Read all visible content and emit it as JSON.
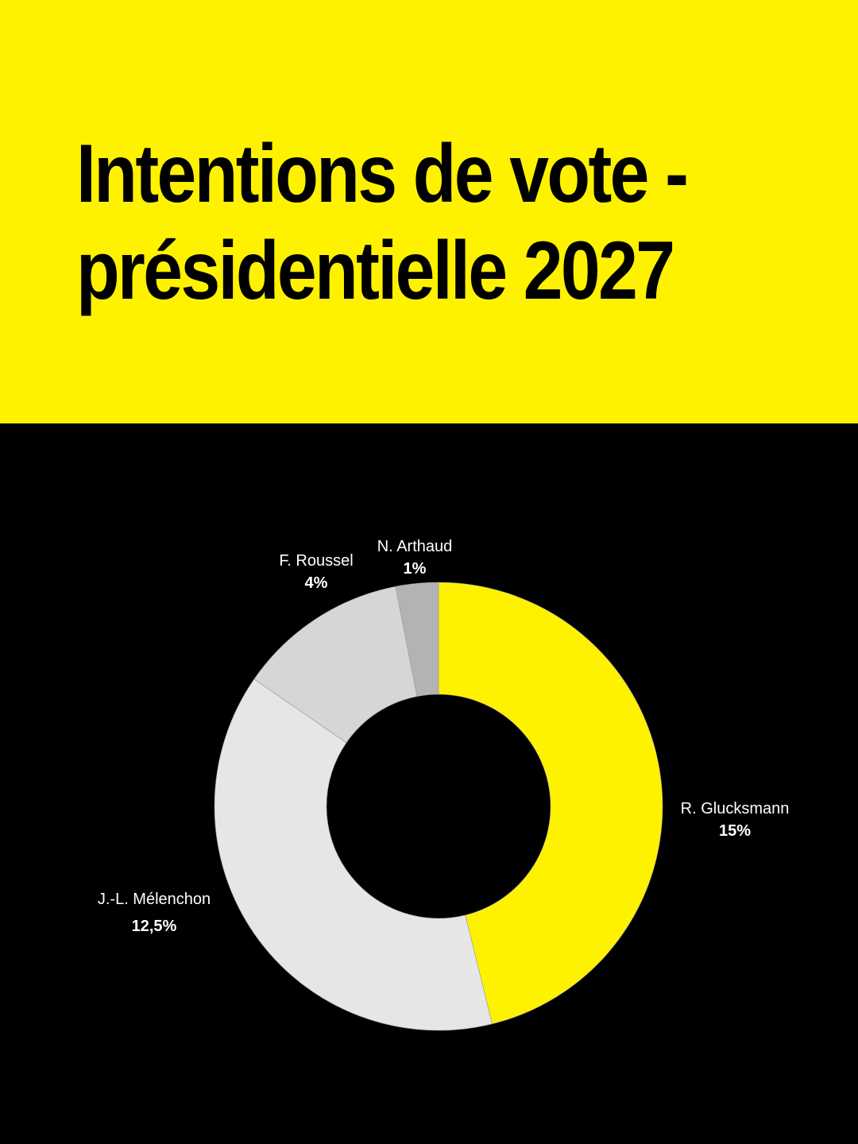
{
  "header": {
    "title_line1": "Intentions de vote -",
    "title_line2": "présidentielle 2027",
    "background": "#FFF200"
  },
  "chart_data": {
    "type": "pie",
    "donut": true,
    "title": "Intentions de vote - présidentielle 2027",
    "slices": [
      {
        "name": "R. Glucksmann",
        "value": 15,
        "label": "15%",
        "color": "#FFF200"
      },
      {
        "name": "J.-L. Mélenchon",
        "value": 12.5,
        "label": "12,5%",
        "color": "#E6E6E6"
      },
      {
        "name": "F. Roussel",
        "value": 4,
        "label": "4%",
        "color": "#D6D6D6"
      },
      {
        "name": "N. Arthaud",
        "value": 1,
        "label": "1%",
        "color": "#B3B3B3"
      }
    ],
    "start": "top",
    "direction": "clockwise",
    "legend": "none",
    "background": "#000000"
  }
}
